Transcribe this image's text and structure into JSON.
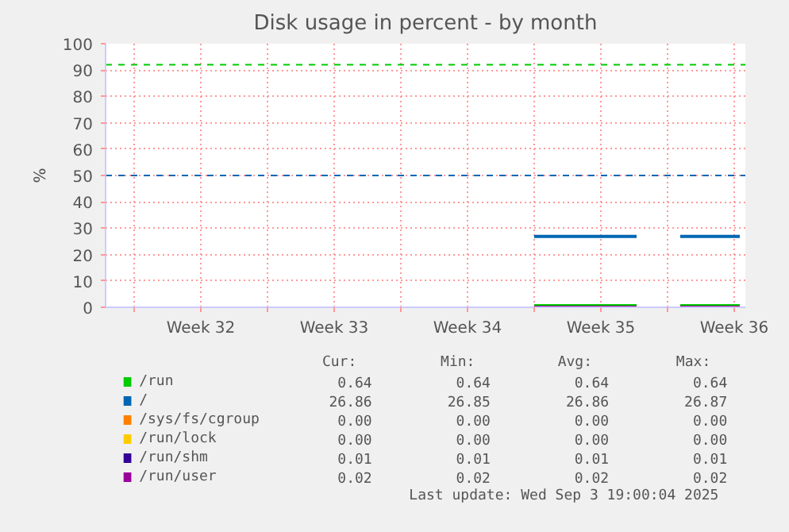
{
  "chart_data": {
    "type": "line",
    "title": "Disk usage in percent - by month",
    "ylabel": "%",
    "x": [
      "2025-08-25T00:00",
      "2025-08-30T09:00",
      "2025-08-30T12:00",
      "2025-09-01T16:00",
      "2025-09-04T19:00"
    ],
    "series": [
      {
        "name": "/run",
        "color": "#00cc00",
        "values": [
          0.64,
          0.64,
          null,
          0.64,
          0.64
        ]
      },
      {
        "name": "/",
        "color": "#0066b3",
        "values": [
          26.86,
          26.86,
          null,
          26.86,
          26.86
        ]
      },
      {
        "name": "/sys/fs/cgroup",
        "color": "#ff8000",
        "values": [
          null,
          null,
          null,
          null,
          null
        ]
      },
      {
        "name": "/run/lock",
        "color": "#ffcc00",
        "values": [
          null,
          null,
          null,
          null,
          null
        ]
      },
      {
        "name": "/run/shm",
        "color": "#330099",
        "values": [
          null,
          null,
          null,
          null,
          null
        ]
      },
      {
        "name": "/run/user",
        "color": "#990099",
        "values": [
          0.02,
          0.02,
          null,
          0.02,
          0.02
        ]
      }
    ],
    "xlim": [
      "2025-08-02T12:00",
      "2025-09-05T02:00"
    ],
    "xticks": [
      {
        "value": "2025-08-04T00:00",
        "label": null
      },
      {
        "value": "2025-08-07T12:00",
        "label": "Week 32"
      },
      {
        "value": "2025-08-11T00:00",
        "label": null
      },
      {
        "value": "2025-08-14T12:00",
        "label": "Week 33"
      },
      {
        "value": "2025-08-18T00:00",
        "label": null
      },
      {
        "value": "2025-08-21T12:00",
        "label": "Week 34"
      },
      {
        "value": "2025-08-25T00:00",
        "label": null
      },
      {
        "value": "2025-08-28T12:00",
        "label": "Week 35"
      },
      {
        "value": "2025-09-01T00:00",
        "label": null
      },
      {
        "value": "2025-09-04T12:00",
        "label": "Week 36"
      }
    ],
    "ylim": [
      0,
      100
    ],
    "yticks": [
      0,
      10,
      20,
      30,
      40,
      50,
      60,
      70,
      80,
      90,
      100
    ],
    "grid": true,
    "legend": "bottom",
    "line_style": "solid",
    "marker": "none",
    "ref_lines": [
      {
        "axis": "y",
        "value": 92,
        "color": "#00cc00",
        "line_style": "dashed"
      },
      {
        "axis": "y",
        "value": 50,
        "color": "#0066b3",
        "line_style": "dashed"
      }
    ],
    "annotations": [
      "Cur:",
      "Min:",
      "Avg:",
      "Max:",
      "0.64",
      "0.64",
      "0.64",
      "0.64",
      "26.86",
      "26.85",
      "26.86",
      "26.87",
      "0.00",
      "0.00",
      "0.00",
      "0.00",
      "0.00",
      "0.00",
      "0.00",
      "0.00",
      "0.01",
      "0.01",
      "0.01",
      "0.01",
      "0.02",
      "0.02",
      "0.02",
      "0.02",
      "Last update: Wed Sep  3 19:00:04 2025"
    ]
  }
}
